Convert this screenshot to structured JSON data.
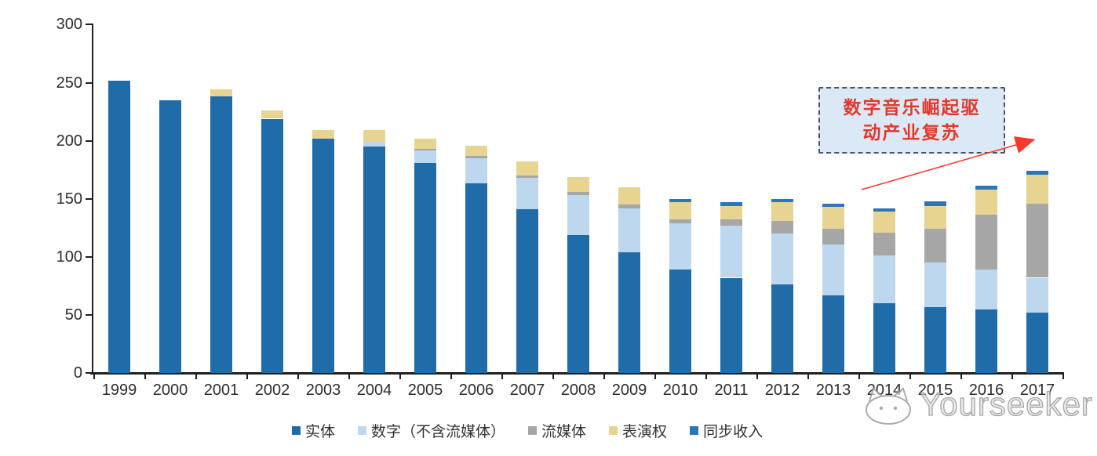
{
  "chart_data": {
    "type": "bar",
    "stacked": true,
    "title": "",
    "xlabel": "",
    "ylabel": "",
    "categories": [
      "1999",
      "2000",
      "2001",
      "2002",
      "2003",
      "2004",
      "2005",
      "2006",
      "2007",
      "2008",
      "2009",
      "2010",
      "2011",
      "2012",
      "2013",
      "2014",
      "2015",
      "2016",
      "2017"
    ],
    "series": [
      {
        "key": "physical",
        "name": "实体",
        "color": "#1F6CA9",
        "values": [
          252,
          235,
          238,
          219,
          202,
          195,
          181,
          163,
          141,
          119,
          104,
          89,
          82,
          76,
          67,
          60,
          57,
          55,
          52
        ]
      },
      {
        "key": "digital",
        "name": "数字（不含流媒体）",
        "color": "#BDD7EE",
        "values": [
          0,
          0,
          0,
          0,
          0,
          4,
          11,
          22,
          27,
          34,
          38,
          40,
          45,
          44,
          44,
          41,
          38,
          34,
          30
        ]
      },
      {
        "key": "streaming",
        "name": "流媒体",
        "color": "#A6A6A6",
        "values": [
          0,
          0,
          0,
          0,
          0,
          0,
          1,
          2,
          2,
          3,
          3,
          3,
          5,
          11,
          13,
          20,
          29,
          47,
          64
        ]
      },
      {
        "key": "performance",
        "name": "表演权",
        "color": "#E8D491",
        "values": [
          0,
          0,
          6,
          7,
          7,
          10,
          9,
          9,
          12,
          13,
          15,
          15,
          12,
          16,
          19,
          18,
          20,
          22,
          25
        ]
      },
      {
        "key": "sync",
        "name": "同步收入",
        "color": "#2E75B6",
        "values": [
          0,
          0,
          0,
          0,
          0,
          0,
          0,
          0,
          0,
          0,
          0,
          3,
          3,
          3,
          3,
          3,
          4,
          3,
          3
        ]
      }
    ],
    "ylim": [
      0,
      300
    ],
    "yticks": [
      0,
      50,
      100,
      150,
      200,
      250,
      300
    ],
    "grid": false,
    "legend_position": "bottom"
  },
  "annotation": {
    "line1": "数字音乐崛起驱",
    "line2": "动产业复苏",
    "text_color": "#E2392B",
    "box_fill": "#DBE9F6",
    "box_border": "#44546A",
    "arrow_color": "#F43B2E"
  },
  "watermark": {
    "text": "Yourseeker",
    "logo": "cat-logo"
  }
}
